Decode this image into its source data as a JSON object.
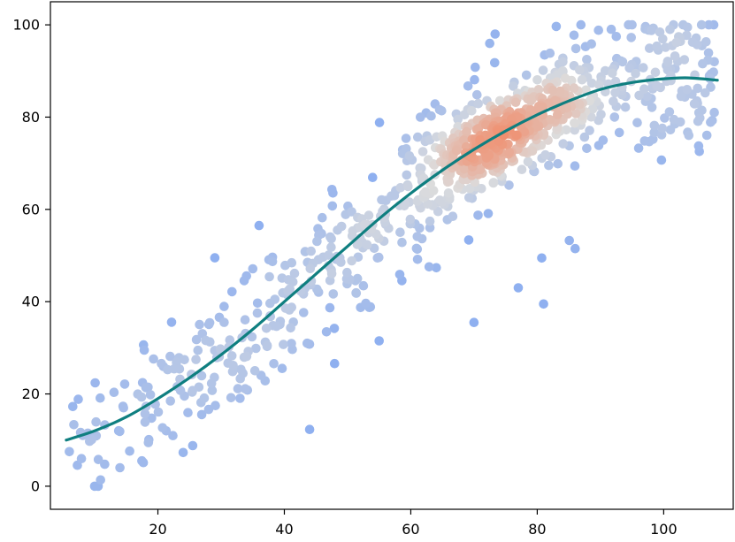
{
  "chart_data": {
    "type": "scatter",
    "title": "",
    "xlabel": "",
    "ylabel": "",
    "xlim": [
      3,
      111
    ],
    "ylim": [
      -5,
      105
    ],
    "xticks": [
      "20",
      "40",
      "60",
      "80",
      "100"
    ],
    "yticks": [
      "0",
      "20",
      "40",
      "60",
      "80",
      "100"
    ],
    "grid": false,
    "legend": "none",
    "colors": {
      "low_density": "#8fb0f0",
      "mid_density": "#dcdcdc",
      "high_density": "#f08f6f",
      "trend_line": "#0f7f80",
      "frame": "#000000"
    },
    "coloring": "point density (blue = sparse, grey = medium, orange-red = dense)",
    "point_sample": {
      "approx_count": 950,
      "x_range": [
        5,
        108
      ],
      "y_range": [
        0,
        100
      ],
      "densest_region": {
        "x": 73,
        "y": 76
      },
      "notable_points": [
        {
          "x": 10,
          "y": 0
        },
        {
          "x": 6,
          "y": 7.5
        },
        {
          "x": 14,
          "y": 4
        },
        {
          "x": 24,
          "y": 7.3
        },
        {
          "x": 44,
          "y": 12.3
        },
        {
          "x": 95,
          "y": 100
        },
        {
          "x": 101,
          "y": 99
        },
        {
          "x": 108,
          "y": 92
        },
        {
          "x": 108,
          "y": 81
        },
        {
          "x": 81,
          "y": 39.5
        },
        {
          "x": 77,
          "y": 43
        },
        {
          "x": 70,
          "y": 35.5
        },
        {
          "x": 86,
          "y": 51.5
        },
        {
          "x": 36,
          "y": 56.5
        },
        {
          "x": 29,
          "y": 49.5
        },
        {
          "x": 55,
          "y": 31.5
        }
      ]
    },
    "trend_line": {
      "type": "line",
      "x": [
        5.5,
        10,
        15,
        20,
        25,
        30,
        35,
        40,
        45,
        50,
        55,
        60,
        65,
        70,
        75,
        80,
        85,
        90,
        95,
        100,
        104,
        108.5
      ],
      "y": [
        10,
        12,
        15,
        19,
        23.5,
        28.5,
        34,
        40,
        46,
        52,
        58,
        63.5,
        68.5,
        73,
        77,
        80.5,
        83.5,
        86,
        87.5,
        88.3,
        88.5,
        88
      ]
    }
  }
}
